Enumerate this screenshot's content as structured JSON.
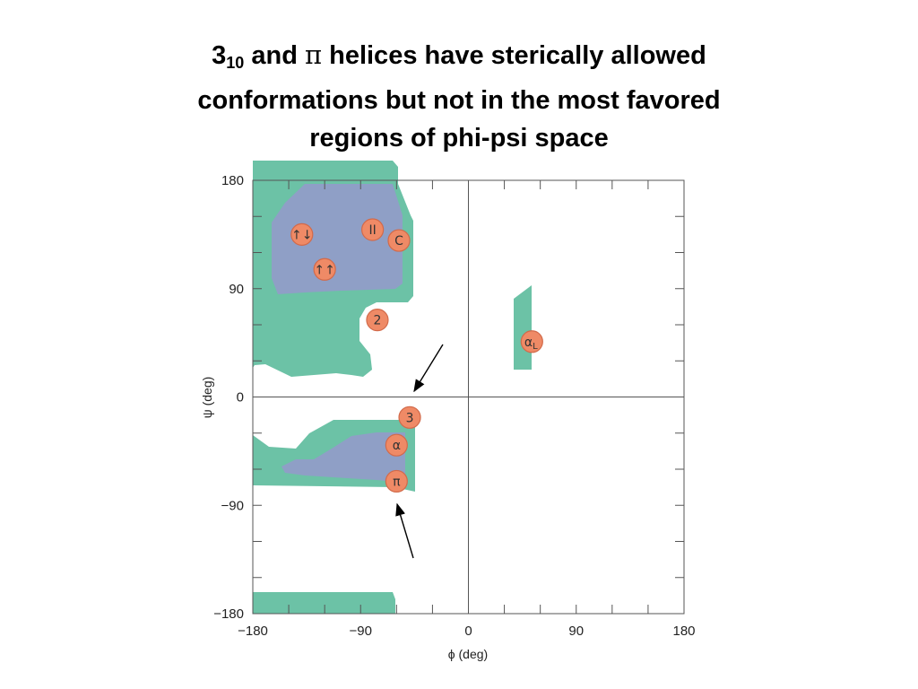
{
  "title": {
    "line1_pre": "3",
    "line1_sub": "10",
    "line1_mid": " and ",
    "line1_pi": "π",
    "line1_post": " helices have sterically allowed",
    "line2": "conformations but not in the most favored",
    "line3": "regions of phi-psi space"
  },
  "chart_data": {
    "type": "scatter",
    "xlabel": "ϕ (deg)",
    "ylabel": "ψ (deg)",
    "xlim": [
      -180,
      180
    ],
    "ylim": [
      -180,
      180
    ],
    "xticks": [
      -180,
      -90,
      0,
      90,
      180
    ],
    "yticks": [
      -180,
      90,
      0,
      -90,
      180
    ],
    "xtick_labels": [
      "−180",
      "−90",
      "0",
      "90",
      "180"
    ],
    "ytick_labels": [
      "180",
      "90",
      "0",
      "−90",
      "−180"
    ],
    "points": [
      {
        "label": "↑↓",
        "x": -139,
        "y": 135
      },
      {
        "label": "II",
        "x": -80,
        "y": 139
      },
      {
        "label": "C",
        "x": -58,
        "y": 130
      },
      {
        "label": "↑↑",
        "x": -120,
        "y": 106
      },
      {
        "label": "2",
        "x": -76,
        "y": 64
      },
      {
        "label": "αL",
        "x": 53,
        "y": 46
      },
      {
        "label": "3",
        "x": -49,
        "y": -17
      },
      {
        "label": "α",
        "x": -60,
        "y": -40
      },
      {
        "label": "π",
        "x": -60,
        "y": -70
      }
    ],
    "regions": [
      "fully allowed (blue)",
      "outer limit allowed (green)"
    ],
    "annotations": [
      "arrow to 3",
      "arrow to π"
    ]
  },
  "colors": {
    "allowed_outer": "#6cc2a6",
    "allowed_inner": "#8f9fc6",
    "marker_fill": "#ef8a66",
    "marker_edge": "#d26a4a",
    "axis": "#555555"
  }
}
